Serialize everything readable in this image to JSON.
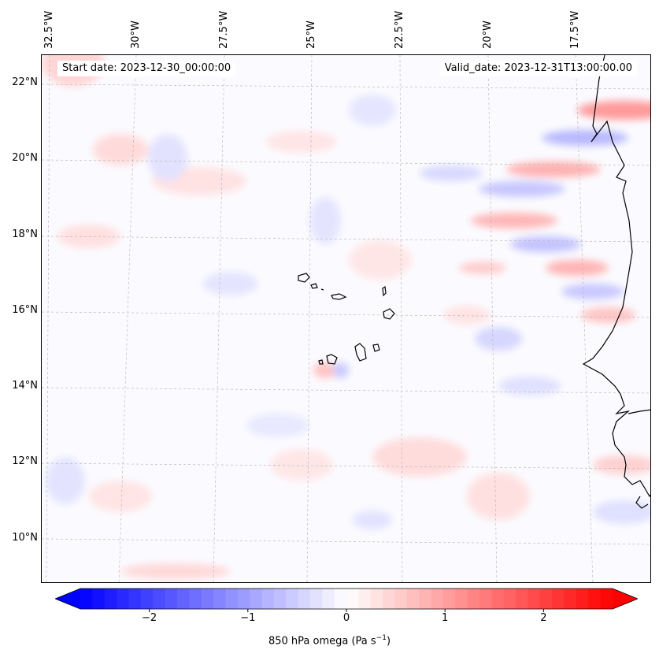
{
  "info": {
    "start_date": "Start date: 2023-12-30_00:00:00",
    "valid_date": "Valid_date: 2023-12-31T13:00:00.00"
  },
  "lat_labels": [
    "22°N",
    "20°N",
    "18°N",
    "16°N",
    "14°N",
    "12°N",
    "10°N"
  ],
  "lon_labels": [
    "32.5°W",
    "30°W",
    "27.5°W",
    "25°W",
    "22.5°W",
    "20°W",
    "17.5°W"
  ],
  "colorbar": {
    "label_main": "850 hPa omega (Pa s",
    "label_sup": "−1",
    "label_end": ")",
    "ticks": [
      "−2",
      "−1",
      "0",
      "1",
      "2"
    ],
    "min": -2.7,
    "max": 2.7,
    "low_color": "#0000ff",
    "mid_color": "#ffffff",
    "high_color": "#ff0000"
  }
}
